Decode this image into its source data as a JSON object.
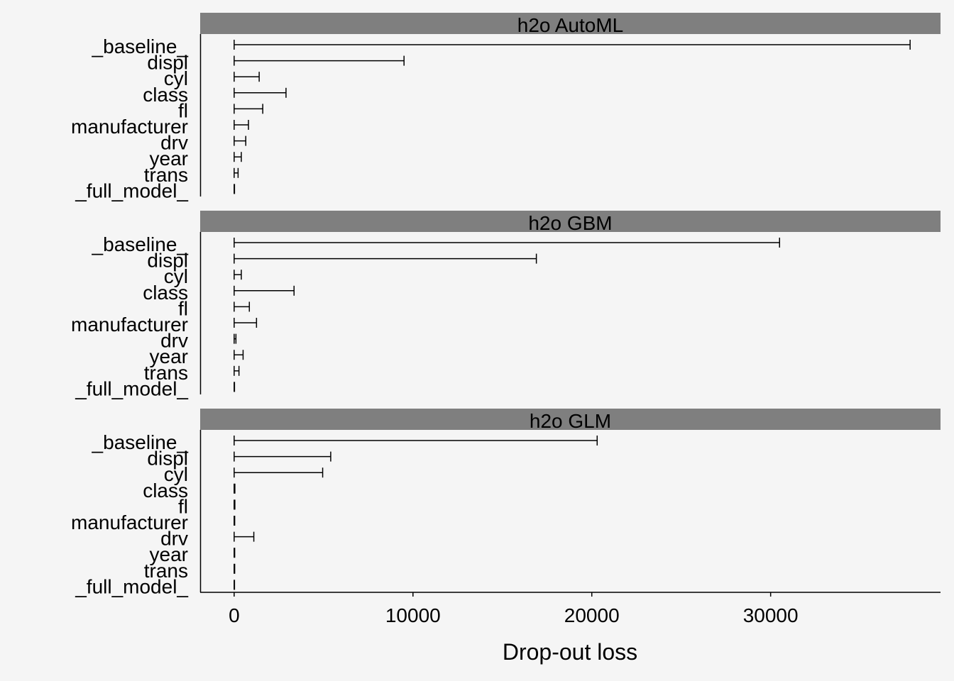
{
  "chart_data": {
    "type": "bar",
    "chart_style": "horizontal interval bars with end caps, faceted",
    "xlabel": "Drop-out loss",
    "x_ticks": [
      0,
      10000,
      20000,
      30000
    ],
    "x_tick_labels": [
      "0",
      "10000",
      "20000",
      "30000"
    ],
    "xlim": [
      -1900,
      39500
    ],
    "categories": [
      "_baseline_",
      "displ",
      "cyl",
      "class",
      "fl",
      "manufacturer",
      "drv",
      "year",
      "trans",
      "_full_model_"
    ],
    "colors": {
      "background": "#f5f5f5",
      "strip": "#7f7f7f",
      "bar": "#000000"
    },
    "grid": false,
    "legend": "none",
    "panels": [
      {
        "strip_label": "h2o AutoML",
        "values": [
          37800,
          9500,
          1400,
          2900,
          1600,
          800,
          650,
          400,
          220,
          20
        ]
      },
      {
        "strip_label": "h2o GBM",
        "values": [
          30500,
          16900,
          400,
          3350,
          850,
          1250,
          100,
          500,
          270,
          20
        ]
      },
      {
        "strip_label": "h2o GLM",
        "values": [
          20300,
          5400,
          4950,
          40,
          40,
          30,
          1100,
          30,
          30,
          20
        ]
      }
    ]
  }
}
